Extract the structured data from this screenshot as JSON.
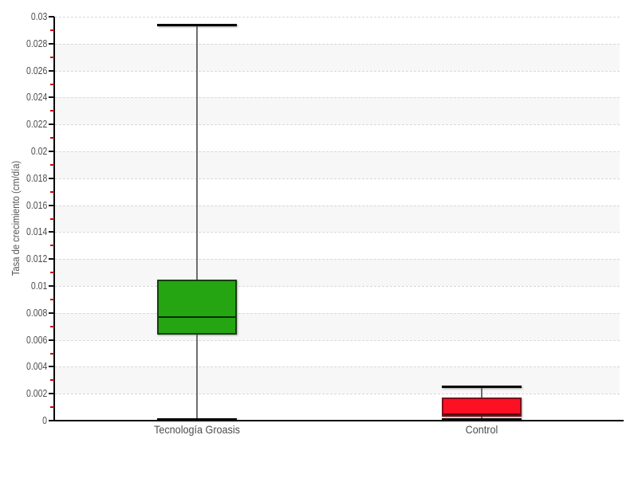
{
  "chart_data": {
    "type": "boxplot",
    "title": "",
    "xlabel": "",
    "ylabel": "Tasa de crecimiento (cm/día)",
    "ylim": [
      0,
      0.03
    ],
    "y_major_step": 0.002,
    "y_minor_step": 0.001,
    "y_tick_labels": [
      "0",
      "0.002",
      "0.004",
      "0.006",
      "0.008",
      "0.01",
      "0.012",
      "0.014",
      "0.016",
      "0.018",
      "0.02",
      "0.022",
      "0.024",
      "0.026",
      "0.028",
      "0.03"
    ],
    "grid": {
      "style": "dashed",
      "major_color": "#d8d8d8",
      "band_color": "#f7f7f7",
      "bands_alternate": true
    },
    "axis_color": "#000000",
    "major_tick_color": "#111111",
    "minor_tick_color": "#cc0000",
    "legend": null,
    "categories": [
      "Tecnología Groasis",
      "Control"
    ],
    "series": [
      {
        "name": "Tecnología Groasis",
        "low": 0.0001,
        "q1": 0.0064,
        "median": 0.0077,
        "q3": 0.0105,
        "high": 0.0294,
        "fill": "#26A513",
        "border": "#173E0E",
        "median_color": "#062D04"
      },
      {
        "name": "Control",
        "low": 0.0001,
        "q1": 0.0003,
        "median": 0.0005,
        "q3": 0.0017,
        "high": 0.0025,
        "fill": "#FC1124",
        "border": "#7E0D18",
        "median_color": "#58090F"
      }
    ]
  }
}
